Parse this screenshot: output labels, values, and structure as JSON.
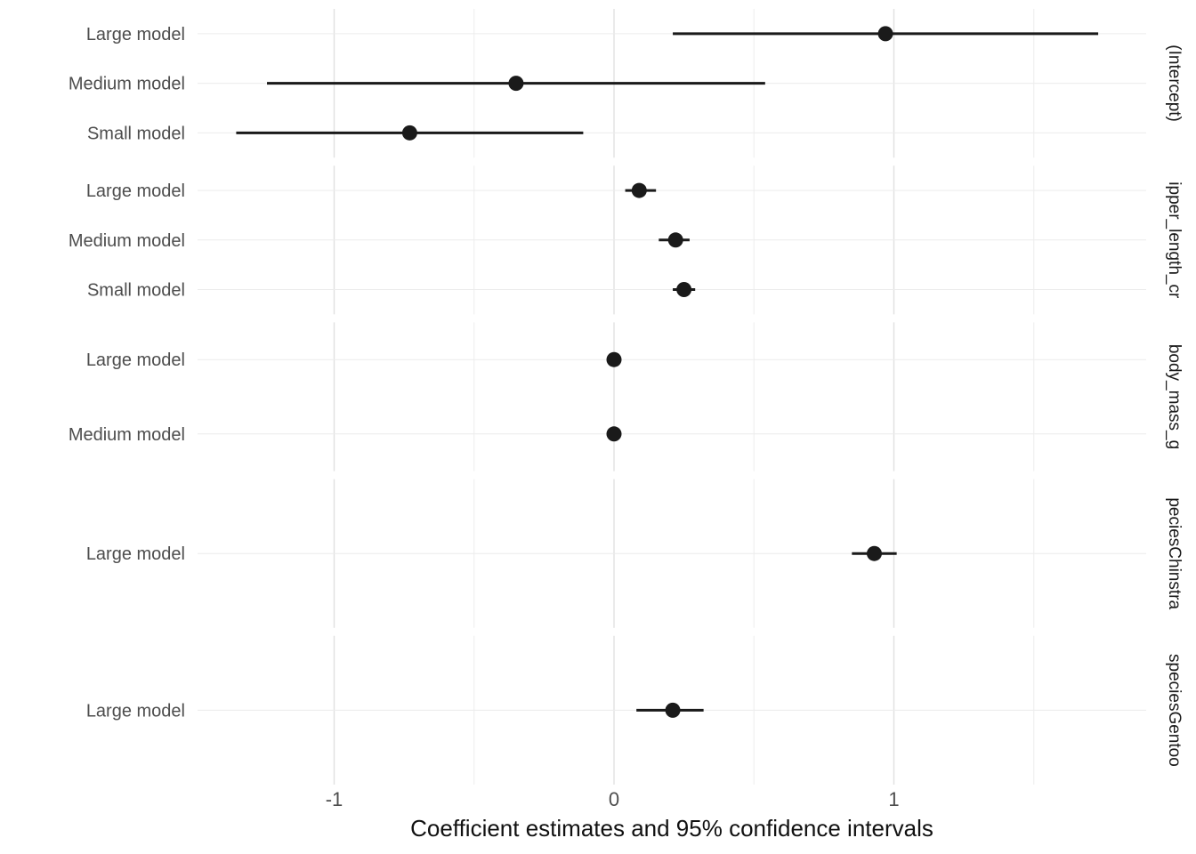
{
  "chart_data": {
    "type": "scatter",
    "subtype": "forest-pointrange",
    "title": "",
    "xlabel": "Coefficient estimates and 95% confidence intervals",
    "ylabel": "",
    "x_ticks": [
      -1,
      0,
      1
    ],
    "x_minor_ticks": [
      -1.5,
      -0.5,
      0.5,
      1.5
    ],
    "xlim": [
      -1.49,
      1.9
    ],
    "grid": "on",
    "legend": "none",
    "colors": {
      "point": "#1a1a1a",
      "ci_line": "#1a1a1a",
      "grid_major": "#e0e0e0",
      "grid_minor": "#ededed",
      "row_gridline": "#ececec",
      "axis_text": "#4d4d4d",
      "strip_text": "#1a1a1a",
      "title_text": "#111111",
      "background": "#ffffff"
    },
    "facets": [
      {
        "label": "(Intercept)",
        "rows": [
          {
            "label": "Large model",
            "estimate": 0.97,
            "ci_low": 0.21,
            "ci_high": 1.73
          },
          {
            "label": "Medium model",
            "estimate": -0.35,
            "ci_low": -1.24,
            "ci_high": 0.54
          },
          {
            "label": "Small model",
            "estimate": -0.73,
            "ci_low": -1.35,
            "ci_high": -0.11
          }
        ]
      },
      {
        "label": "ipper_length_cr",
        "rows": [
          {
            "label": "Large model",
            "estimate": 0.09,
            "ci_low": 0.04,
            "ci_high": 0.15
          },
          {
            "label": "Medium model",
            "estimate": 0.22,
            "ci_low": 0.16,
            "ci_high": 0.27
          },
          {
            "label": "Small model",
            "estimate": 0.25,
            "ci_low": 0.21,
            "ci_high": 0.29
          }
        ]
      },
      {
        "label": "body_mass_g",
        "rows": [
          {
            "label": "Large model",
            "estimate": 0.0,
            "ci_low": -0.02,
            "ci_high": 0.02
          },
          {
            "label": "Medium model",
            "estimate": 0.0,
            "ci_low": -0.02,
            "ci_high": 0.02
          }
        ]
      },
      {
        "label": "peciesChinstra",
        "rows": [
          {
            "label": "Large model",
            "estimate": 0.93,
            "ci_low": 0.85,
            "ci_high": 1.01
          }
        ]
      },
      {
        "label": "speciesGentoo",
        "rows": [
          {
            "label": "Large model",
            "estimate": 0.21,
            "ci_low": 0.08,
            "ci_high": 0.32
          }
        ]
      }
    ]
  }
}
